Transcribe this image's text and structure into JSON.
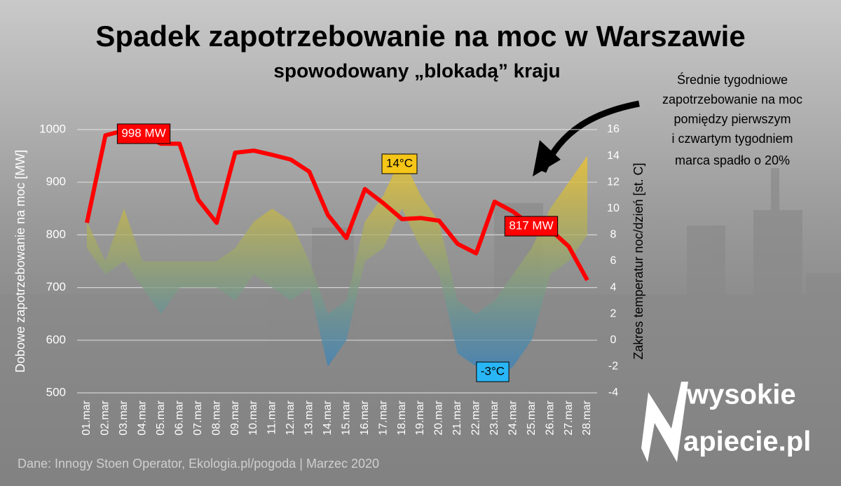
{
  "chart_data": {
    "type": "line",
    "title": "Spadek zapotrzebowanie na moc w Warszawie",
    "subtitle": "spowodowany „blokadą” kraju",
    "y_label": "Dobowe zapotrzebowanie na moc [MW]",
    "y2_label": "Zakres temperatur noc/dzień  [st. C]",
    "categories": [
      "01.mar",
      "02.mar",
      "03.mar",
      "04.mar",
      "05.mar",
      "06.mar",
      "07.mar",
      "08.mar",
      "09.mar",
      "10.mar",
      "11.mar",
      "12.mar",
      "13.mar",
      "14.mar",
      "15.mar",
      "16.mar",
      "17.mar",
      "18.mar",
      "19.mar",
      "20.mar",
      "21.mar",
      "22.mar",
      "23.mar",
      "24.mar",
      "25.mar",
      "26.mar",
      "27.mar",
      "28.mar"
    ],
    "series": [
      {
        "color": "#ff0000",
        "values": [
          823,
          989,
          998,
          990,
          973,
          973,
          867,
          823,
          956,
          960,
          952,
          943,
          920,
          838,
          794,
          887,
          860,
          830,
          832,
          827,
          783,
          765,
          863,
          844,
          817,
          810,
          778,
          714
        ]
      },
      {
        "type": "range",
        "axis": "y2",
        "colors": [
          "#2f7fc4",
          "#f2c624"
        ],
        "high": [
          9,
          6,
          10,
          6,
          6,
          6,
          6,
          6,
          7,
          9,
          10,
          9,
          6,
          2,
          3,
          9,
          11,
          14,
          11,
          9,
          3,
          2,
          3,
          5,
          7,
          10,
          12,
          14
        ],
        "low": [
          7,
          5,
          6,
          4,
          2,
          4,
          4,
          4,
          3,
          5,
          4,
          3,
          4,
          -2,
          0,
          6,
          7,
          10,
          7,
          5,
          -1,
          -2,
          -3,
          -2,
          0,
          5,
          6,
          8
        ]
      }
    ],
    "ylim": [
      500,
      1000
    ],
    "yticks": [
      500,
      600,
      700,
      800,
      900,
      1000
    ],
    "y2lim": [
      -4,
      16
    ],
    "y2ticks": [
      -4,
      -2,
      0,
      2,
      4,
      6,
      8,
      10,
      12,
      14,
      16
    ],
    "grid": true,
    "annotations": [
      {
        "text": "998 MW",
        "color": "#ff0000"
      },
      {
        "text": "817 MW",
        "color": "#ff0000"
      },
      {
        "text": "14°C",
        "color": "#f5c518"
      },
      {
        "text": "-3°C",
        "color": "#29b6f6"
      }
    ],
    "callout": [
      "Średnie tygodniowe",
      "zapotrzebowanie na moc",
      "pomiędzy pierwszym",
      "i czwartym tygodniem",
      "marca spadło o 20%"
    ],
    "source": "Dane: Innogy Stoen Operator, Ekologia.pl/pogoda  |  Marzec 2020",
    "logo": [
      "wysokie",
      "apiecie.pl"
    ]
  }
}
